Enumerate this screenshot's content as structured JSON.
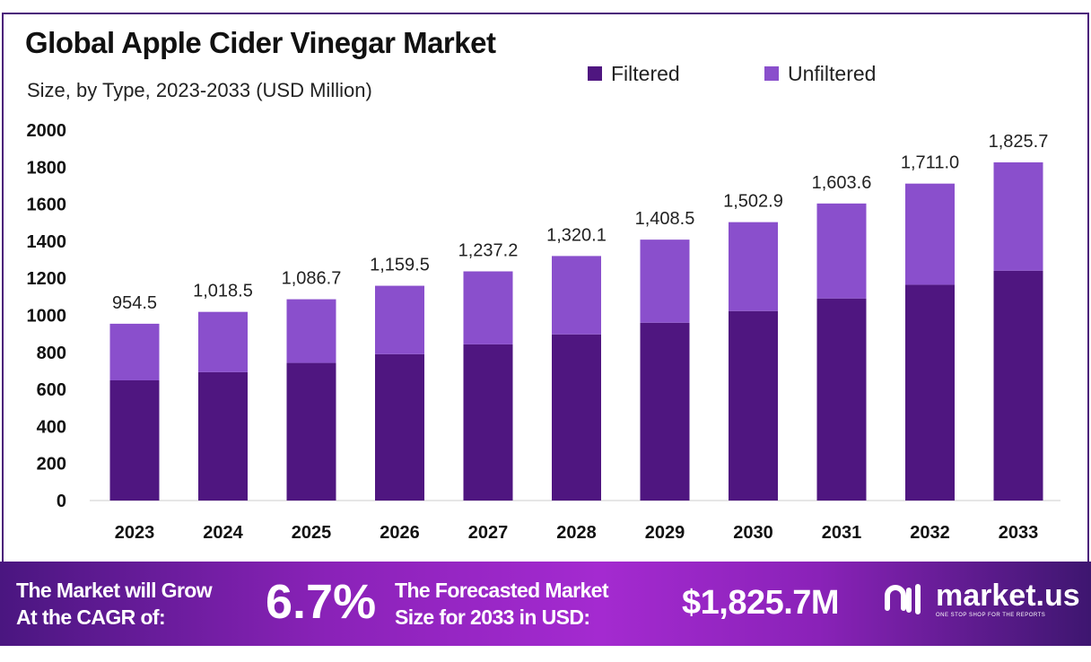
{
  "chart_data": {
    "type": "bar",
    "stacked": true,
    "title": "Global Apple Cider Vinegar Market",
    "subtitle": "Size, by Type, 2023-2033 (USD Million)",
    "categories": [
      "2023",
      "2024",
      "2025",
      "2026",
      "2027",
      "2028",
      "2029",
      "2030",
      "2031",
      "2032",
      "2033"
    ],
    "series": [
      {
        "name": "Filtered",
        "color": "#4f1680",
        "values": [
          649,
          693,
          743,
          790,
          843,
          897,
          960,
          1023,
          1091,
          1165,
          1241
        ]
      },
      {
        "name": "Unfiltered",
        "color": "#8a4fcc",
        "values": [
          305.5,
          325.5,
          343.7,
          369.5,
          394.2,
          423.1,
          448.5,
          479.9,
          512.6,
          546.0,
          584.7
        ]
      }
    ],
    "totals": [
      954.5,
      1018.5,
      1086.7,
      1159.5,
      1237.2,
      1320.1,
      1408.5,
      1502.9,
      1603.6,
      1711.0,
      1825.7
    ],
    "total_labels": [
      "954.5",
      "1,018.5",
      "1,086.7",
      "1,159.5",
      "1,237.2",
      "1,320.1",
      "1,408.5",
      "1,502.9",
      "1,603.6",
      "1,711.0",
      "1,825.7"
    ],
    "yticks": [
      "0",
      "200",
      "400",
      "600",
      "800",
      "1000",
      "1200",
      "1400",
      "1600",
      "1800",
      "2000"
    ],
    "ylim": [
      0,
      2000
    ],
    "grid": false,
    "legend": "top-right"
  },
  "footer": {
    "grow_text_1": "The Market will Grow",
    "grow_text_2": "At the CAGR of:",
    "cagr": "6.7%",
    "forecast_text_1": "The Forecasted Market",
    "forecast_text_2": "Size for 2033 in USD:",
    "forecast_value": "$1,825.7M",
    "logo_text": "market.us",
    "logo_tagline": "ONE STOP SHOP FOR THE REPORTS"
  }
}
